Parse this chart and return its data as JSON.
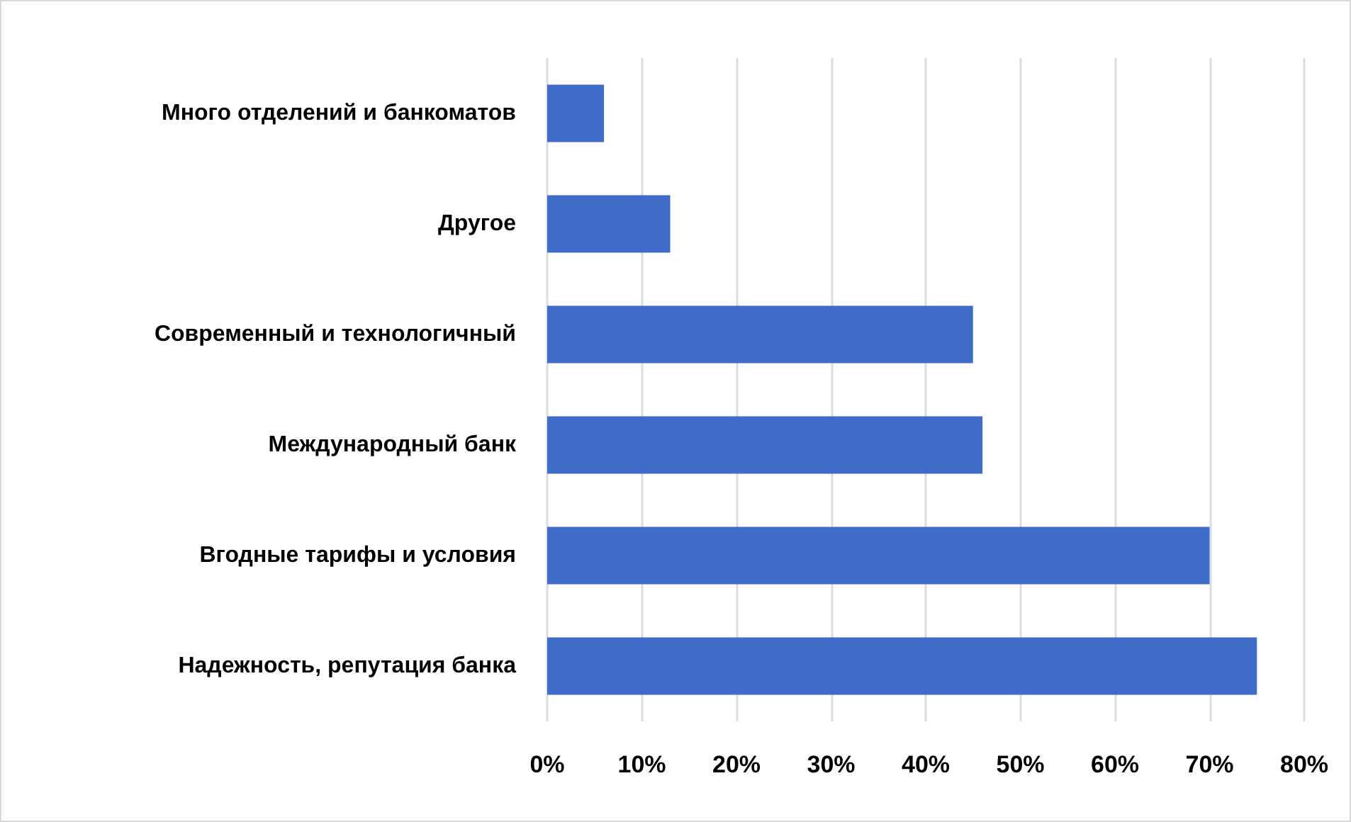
{
  "chart_data": {
    "type": "bar",
    "orientation": "horizontal",
    "categories": [
      "Много отделений и банкоматов",
      "Другое",
      "Современный и технологичный",
      "Международный банк",
      "Вгодные тарифы и условия",
      "Надежность, репутация банка"
    ],
    "values": [
      6,
      13,
      45,
      46,
      70,
      75
    ],
    "color": "#3f6cc7",
    "xlim": [
      0,
      80
    ],
    "xticks": [
      {
        "value": 0,
        "label": "0%"
      },
      {
        "value": 10,
        "label": "10%"
      },
      {
        "value": 20,
        "label": "20%"
      },
      {
        "value": 30,
        "label": "30%"
      },
      {
        "value": 40,
        "label": "40%"
      },
      {
        "value": 50,
        "label": "50%"
      },
      {
        "value": 60,
        "label": "60%"
      },
      {
        "value": 70,
        "label": "70%"
      },
      {
        "value": 80,
        "label": "80%"
      }
    ],
    "grid": "x"
  }
}
